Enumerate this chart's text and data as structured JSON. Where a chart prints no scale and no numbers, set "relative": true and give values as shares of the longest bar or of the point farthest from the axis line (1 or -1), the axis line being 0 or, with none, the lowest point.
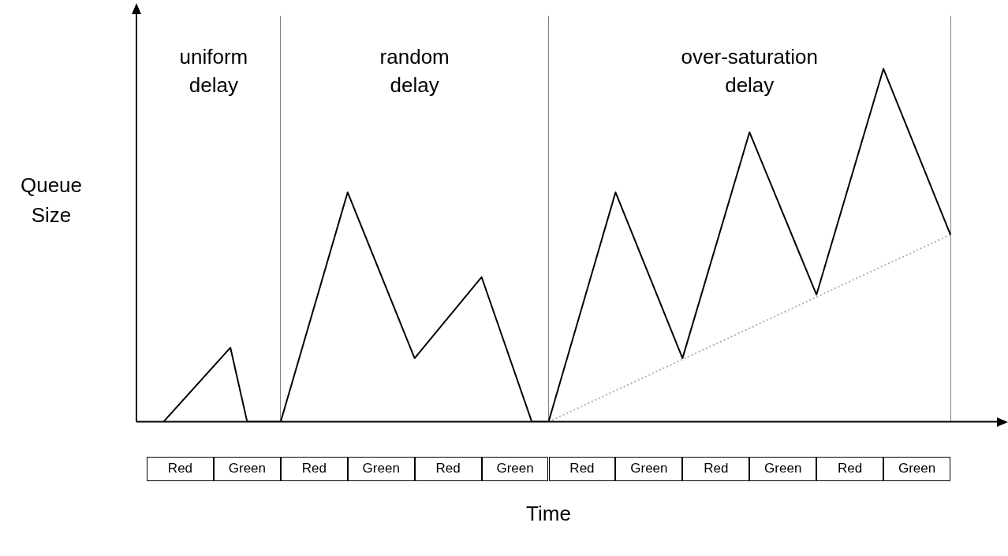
{
  "chart_data": {
    "type": "line",
    "relative": true,
    "xlabel": "Time",
    "ylabel": "Queue Size",
    "categories": [
      null,
      null,
      "Red",
      null,
      null,
      null,
      "Green",
      null,
      null,
      null,
      "Red",
      null,
      null,
      null,
      "Green",
      null,
      null,
      null,
      "Red",
      null,
      null,
      null,
      "Green",
      null,
      null,
      null,
      "Red",
      null,
      null,
      null,
      "Green",
      null,
      null,
      null,
      "Red",
      null,
      null,
      null,
      "Green",
      null,
      null,
      null,
      "Red",
      null,
      null,
      null,
      "Green",
      null,
      null
    ],
    "series": [
      {
        "color": "#000000",
        "values": [
          null,
          0,
          null,
          null,
          null,
          0.21,
          0,
          null,
          0,
          null,
          null,
          null,
          0.65,
          null,
          null,
          null,
          0.18,
          null,
          null,
          null,
          0.41,
          null,
          null,
          0,
          0,
          null,
          null,
          null,
          0.65,
          null,
          null,
          null,
          0.18,
          null,
          null,
          null,
          0.82,
          null,
          null,
          null,
          0.36,
          null,
          null,
          null,
          1.0,
          null,
          null,
          null,
          0.53
        ]
      },
      {
        "type": "line",
        "color": "#b0b0b0",
        "line_style": "dotted",
        "values": [
          null,
          null,
          null,
          null,
          null,
          null,
          null,
          null,
          null,
          null,
          null,
          null,
          null,
          null,
          null,
          null,
          null,
          null,
          null,
          null,
          null,
          null,
          null,
          null,
          0,
          null,
          null,
          null,
          null,
          null,
          null,
          null,
          null,
          null,
          null,
          null,
          null,
          null,
          null,
          null,
          null,
          null,
          null,
          null,
          null,
          null,
          null,
          null,
          0.53
        ]
      }
    ],
    "annotations": [
      "uniform\ndelay",
      "random\ndelay",
      "over-saturation\ndelay"
    ],
    "grid": "x",
    "legend": false,
    "marker": "none"
  }
}
